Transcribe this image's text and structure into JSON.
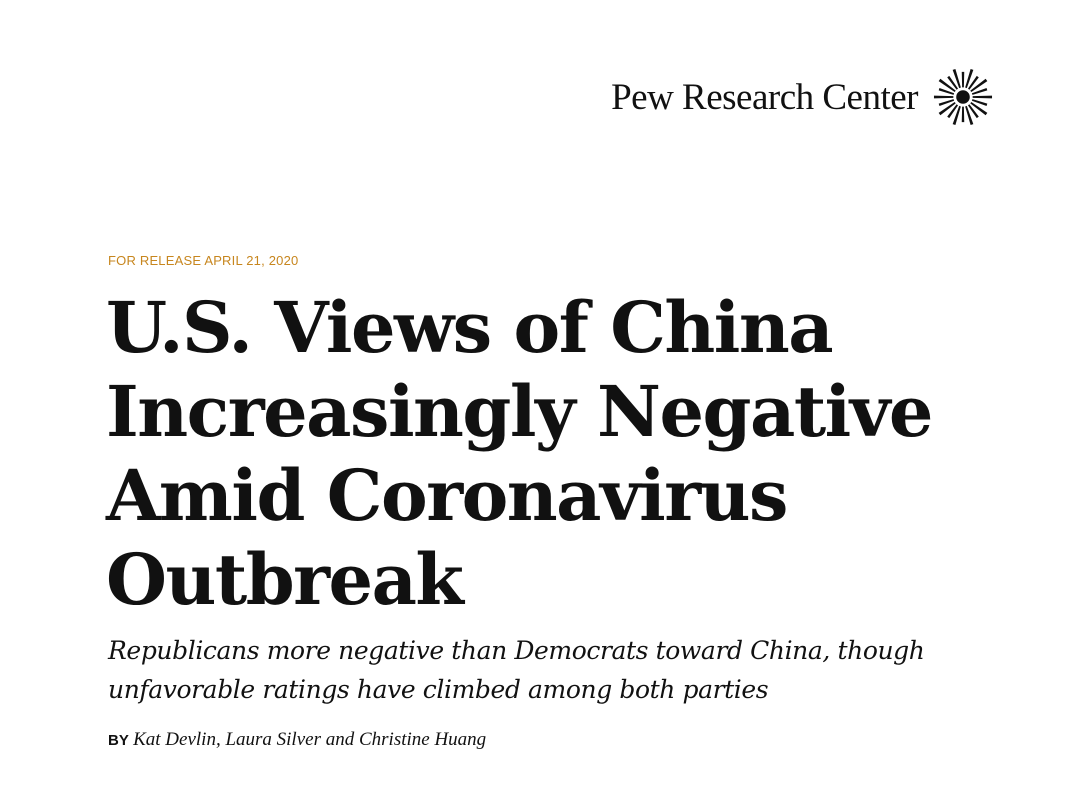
{
  "header": {
    "logo_text": "Pew Research Center",
    "logo_icon": "sunburst-icon"
  },
  "release": {
    "text": "FOR RELEASE APRIL 21, 2020",
    "color": "#c7861e"
  },
  "report": {
    "title_lines": [
      "U.S. Views of China",
      "Increasingly Negative",
      "Amid Coronavirus",
      "Outbreak"
    ],
    "subtitle_lines": [
      "Republicans more negative than Democrats toward China, though",
      "unfavorable ratings have climbed among both parties"
    ]
  },
  "byline": {
    "label": "BY",
    "authors": "Kat Devlin, Laura Silver and Christine Huang"
  }
}
